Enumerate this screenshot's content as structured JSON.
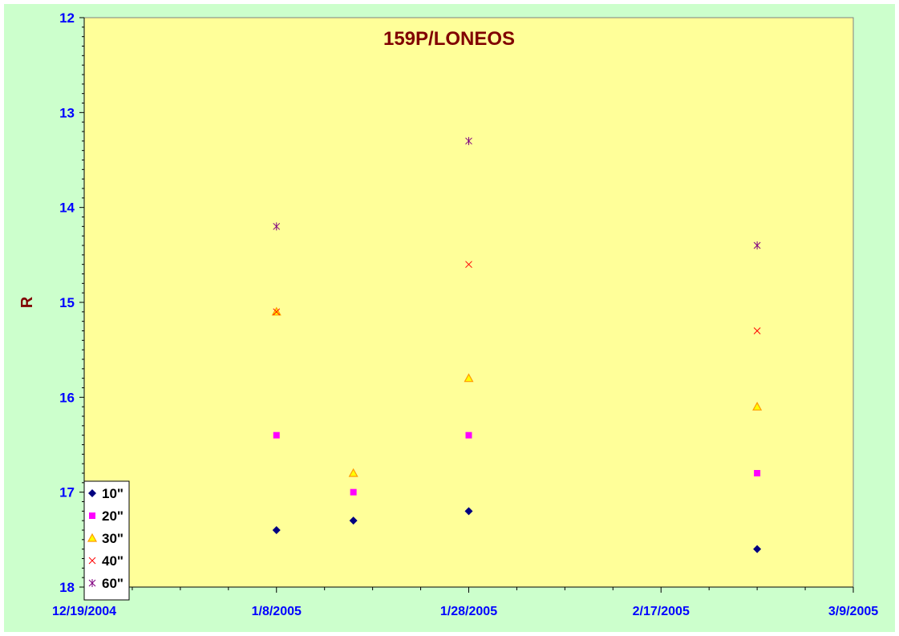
{
  "chart_data": {
    "type": "scatter",
    "title": "159P/LONEOS",
    "xlabel": "",
    "ylabel": "R",
    "x_axis": {
      "type": "date",
      "min": "2004-12-19",
      "max": "2005-03-09",
      "tick_labels": [
        "12/19/2004",
        "1/8/2005",
        "1/28/2005",
        "2/17/2005",
        "3/9/2005"
      ]
    },
    "y_axis": {
      "min": 12,
      "max": 18,
      "reversed": true,
      "tick_labels": [
        "12",
        "13",
        "14",
        "15",
        "16",
        "17",
        "18"
      ]
    },
    "grid": false,
    "legend_position": "bottom-left",
    "colors": {
      "frame_background": "#ccffcc",
      "plot_background": "#ffff99",
      "tick_labels": "#0000ff",
      "titles": "#800000"
    },
    "series": [
      {
        "name": "10\"",
        "marker": "diamond",
        "color": "#000080",
        "points": [
          {
            "x": "2005-01-08",
            "y": 17.4
          },
          {
            "x": "2005-01-16",
            "y": 17.3
          },
          {
            "x": "2005-01-28",
            "y": 17.2
          },
          {
            "x": "2005-02-27",
            "y": 17.6
          }
        ]
      },
      {
        "name": "20\"",
        "marker": "square",
        "color": "#ff00ff",
        "points": [
          {
            "x": "2005-01-08",
            "y": 16.4
          },
          {
            "x": "2005-01-16",
            "y": 17.0
          },
          {
            "x": "2005-01-28",
            "y": 16.4
          },
          {
            "x": "2005-02-27",
            "y": 16.8
          }
        ]
      },
      {
        "name": "30\"",
        "marker": "triangle",
        "color": "#ff9900",
        "points": [
          {
            "x": "2005-01-08",
            "y": 15.1
          },
          {
            "x": "2005-01-16",
            "y": 16.8
          },
          {
            "x": "2005-01-28",
            "y": 15.8
          },
          {
            "x": "2005-02-27",
            "y": 16.1
          }
        ]
      },
      {
        "name": "40\"",
        "marker": "x",
        "color": "#ff0000",
        "points": [
          {
            "x": "2005-01-08",
            "y": 15.1
          },
          {
            "x": "2005-01-28",
            "y": 14.6
          },
          {
            "x": "2005-02-27",
            "y": 15.3
          }
        ]
      },
      {
        "name": "60\"",
        "marker": "star",
        "color": "#800080",
        "points": [
          {
            "x": "2005-01-08",
            "y": 14.2
          },
          {
            "x": "2005-01-28",
            "y": 13.3
          },
          {
            "x": "2005-02-27",
            "y": 14.4
          }
        ]
      }
    ]
  }
}
